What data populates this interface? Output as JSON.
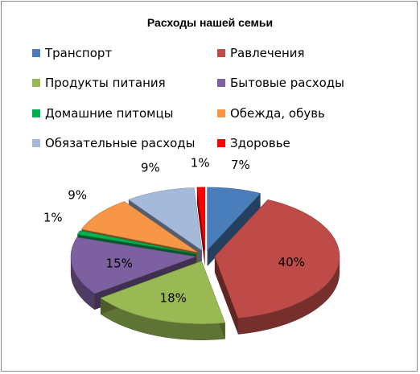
{
  "chart_data": {
    "type": "pie",
    "title": "Расходы нашей семьи",
    "categories": [
      "Транспорт",
      "Равлечения",
      "Продукты питания",
      "Бытовые расходы",
      "Домашние питомцы",
      "Обежда, обувь",
      "Обязательные расходы",
      "Здоровье"
    ],
    "values": [
      7,
      40,
      18,
      15,
      1,
      9,
      9,
      1
    ],
    "data_labels": [
      "7%",
      "40%",
      "18%",
      "15%",
      "1%",
      "9%",
      "9%",
      "1%"
    ],
    "colors": [
      "#4a7ebb",
      "#be4b48",
      "#98b954",
      "#7d60a0",
      "#00b050",
      "#f79646",
      "#a5b9da",
      "#ff0000"
    ],
    "style": "exploded-3d",
    "legend": "top"
  }
}
